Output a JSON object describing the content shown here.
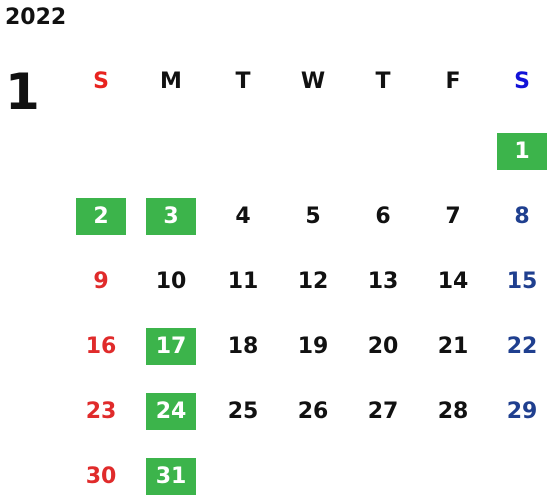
{
  "year": "2022",
  "month": "1",
  "weekdays": [
    "S",
    "M",
    "T",
    "W",
    "T",
    "F",
    "S"
  ],
  "weekday_colors": [
    "#e8231f",
    "#111111",
    "#111111",
    "#111111",
    "#111111",
    "#111111",
    "#1212d8"
  ],
  "day_colors": {
    "sunday": "#e02b2b",
    "weekday": "#111111",
    "saturday": "#1f3f8f"
  },
  "highlight_color": "#3cb44b",
  "first_weekday": 6,
  "days_in_month": 31,
  "highlighted_days": [
    1,
    2,
    3,
    17,
    24,
    31
  ]
}
